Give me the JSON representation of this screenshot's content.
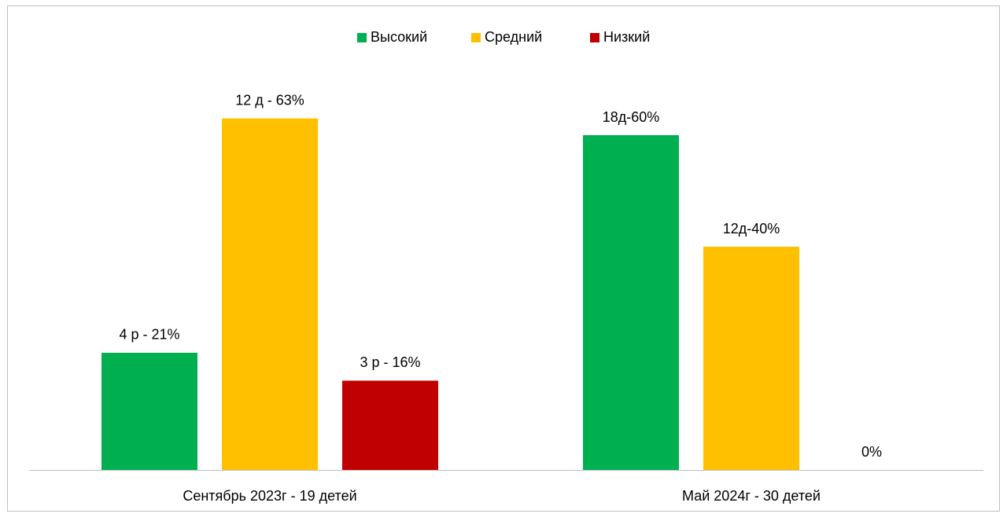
{
  "chart_data": {
    "type": "bar",
    "categories": [
      "Сентябрь 2023г - 19 детей",
      "Май 2024г - 30 детей"
    ],
    "series": [
      {
        "name": "Высокий",
        "color": "#00b050",
        "values": [
          21,
          60
        ],
        "value_labels": [
          "4 р - 21%",
          "18д-60%"
        ]
      },
      {
        "name": "Средний",
        "color": "#ffc000",
        "values": [
          63,
          40
        ],
        "value_labels": [
          "12 д - 63%",
          "12д-40%"
        ]
      },
      {
        "name": "Низкий",
        "color": "#c00000",
        "values": [
          16,
          0
        ],
        "value_labels": [
          "3 р - 16%",
          "0%"
        ]
      }
    ],
    "ylim": [
      0,
      70
    ],
    "legend": "top"
  }
}
